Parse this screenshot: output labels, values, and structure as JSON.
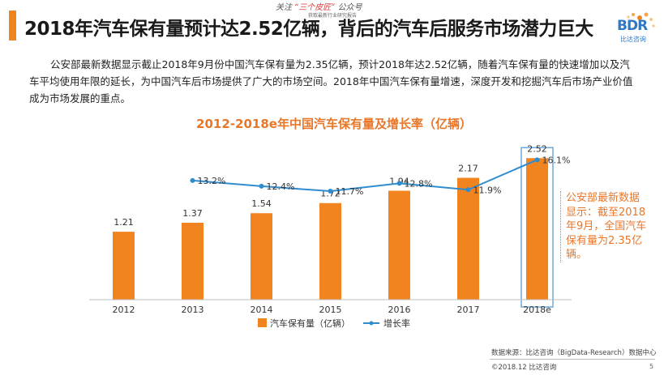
{
  "header": {
    "title": "2018年汽车保有量预计达2.52亿辆，背后的汽车后服务市场潜力巨大",
    "watermark_prefix": "关注",
    "watermark_quote": "“三个皮匠”",
    "watermark_suffix": "公众号",
    "watermark_sub": "获取最新行业研究报告"
  },
  "logo": {
    "text": "BDR",
    "sub": "比达咨询"
  },
  "intro_text": "公安部最新数据显示截止2018年9月份中国汽车保有量为2.35亿辆，预计2018年达2.52亿辆，随着汽车保有量的快速增加以及汽车平均使用年限的延长，为中国汽车后市场提供了广大的市场空间。2018年中国汽车保有量增速，深度开发和挖掘汽车后市场产业价值成为市场发展的重点。",
  "chart_data": {
    "type": "bar",
    "title": "2012-2018e年中国汽车保有量及增长率（亿辆）",
    "categories": [
      "2012",
      "2013",
      "2014",
      "2015",
      "2016",
      "2017",
      "2018e"
    ],
    "series": [
      {
        "name": "汽车保有量（亿辆）",
        "type": "bar",
        "values": [
          1.21,
          1.37,
          1.54,
          1.72,
          1.94,
          2.17,
          2.52
        ],
        "labels": [
          "1.21",
          "1.37",
          "1.54",
          "1.72",
          "1.94",
          "2.17",
          "2.52"
        ],
        "color": "#f2841f"
      },
      {
        "name": "增长率",
        "type": "line",
        "values": [
          null,
          13.2,
          12.4,
          11.7,
          12.8,
          11.9,
          16.1
        ],
        "labels": [
          "",
          "13.2%",
          "12.4%",
          "11.7%",
          "12.8%",
          "11.9%",
          "16.1%"
        ],
        "color": "#2f8ccf"
      }
    ],
    "ylim": [
      0,
      3
    ],
    "y2lim": [
      0,
      20
    ],
    "grid": false,
    "legend_position": "bottom",
    "highlight_category": "2018e"
  },
  "callout_text": "公安部最新数据显示：截至2018年9月，全国汽车保有量为2.35亿辆。",
  "footer": {
    "source": "数据来源：比达咨询（BigData-Research）数据中心",
    "copyright": "©2018.12 比达咨询",
    "page": "5"
  },
  "colors": {
    "accent": "#f2841f",
    "line": "#2f8ccf",
    "title": "#e8772a",
    "highlight_box": "#6fa8dc"
  }
}
